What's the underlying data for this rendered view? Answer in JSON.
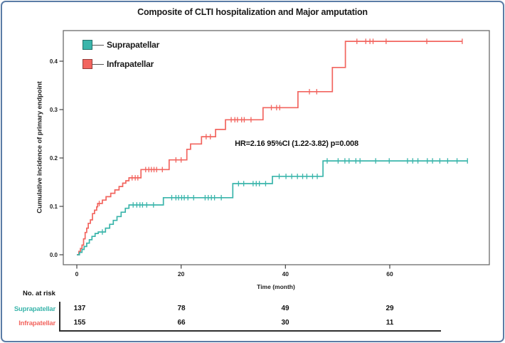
{
  "figure": {
    "border_color": "#5b7ca6"
  },
  "chart_data": {
    "type": "line",
    "subtype": "kaplan-meier-step",
    "title": "Composite of CLTI hospitalization and Major amputation",
    "xlabel": "Time (month)",
    "ylabel": "Cumulative incidence of primary endpoint",
    "annotation": "HR=2.16 95%CI (1.22-3.82) p=0.008",
    "xlim": [
      0,
      79
    ],
    "ylim": [
      0,
      0.46
    ],
    "xticks": [
      0,
      20,
      40,
      60
    ],
    "ytick_labels": [
      "0.0",
      "0.1",
      "0.2",
      "0.3",
      "0.4"
    ],
    "grid": false,
    "legend_position": "top-left",
    "series": [
      {
        "name": "Suprapatellar",
        "color": "#3ab5ab",
        "steps": [
          [
            0,
            0
          ],
          [
            0.5,
            0.005
          ],
          [
            1.0,
            0.011
          ],
          [
            1.4,
            0.017
          ],
          [
            1.9,
            0.024
          ],
          [
            2.4,
            0.031
          ],
          [
            2.9,
            0.038
          ],
          [
            3.5,
            0.044
          ],
          [
            4.1,
            0.047
          ],
          [
            5.5,
            0.055
          ],
          [
            6.3,
            0.063
          ],
          [
            7.0,
            0.071
          ],
          [
            7.7,
            0.079
          ],
          [
            8.5,
            0.088
          ],
          [
            9.3,
            0.096
          ],
          [
            10.0,
            0.103
          ],
          [
            16.6,
            0.118
          ],
          [
            29.9,
            0.147
          ],
          [
            37.5,
            0.162
          ],
          [
            47.2,
            0.194
          ]
        ],
        "end_month": 74.9,
        "censor_ticks": [
          [
            4.9,
            0.047
          ],
          [
            10.8,
            0.103
          ],
          [
            11.5,
            0.103
          ],
          [
            12.1,
            0.103
          ],
          [
            12.6,
            0.103
          ],
          [
            13.4,
            0.103
          ],
          [
            14.7,
            0.103
          ],
          [
            18.2,
            0.118
          ],
          [
            19.0,
            0.118
          ],
          [
            19.5,
            0.118
          ],
          [
            20.1,
            0.118
          ],
          [
            20.6,
            0.118
          ],
          [
            21.3,
            0.118
          ],
          [
            22.4,
            0.118
          ],
          [
            24.6,
            0.118
          ],
          [
            25.2,
            0.118
          ],
          [
            25.8,
            0.118
          ],
          [
            26.4,
            0.118
          ],
          [
            27.7,
            0.118
          ],
          [
            31.0,
            0.147
          ],
          [
            32.0,
            0.147
          ],
          [
            33.8,
            0.147
          ],
          [
            34.4,
            0.147
          ],
          [
            35.0,
            0.147
          ],
          [
            36.2,
            0.147
          ],
          [
            38.8,
            0.162
          ],
          [
            40.1,
            0.162
          ],
          [
            41.2,
            0.162
          ],
          [
            42.3,
            0.162
          ],
          [
            43.3,
            0.162
          ],
          [
            44.1,
            0.162
          ],
          [
            45.2,
            0.162
          ],
          [
            46.1,
            0.162
          ],
          [
            48.0,
            0.194
          ],
          [
            50.1,
            0.194
          ],
          [
            51.4,
            0.194
          ],
          [
            52.2,
            0.194
          ],
          [
            53.5,
            0.194
          ],
          [
            54.3,
            0.194
          ],
          [
            57.3,
            0.194
          ],
          [
            59.9,
            0.194
          ],
          [
            63.4,
            0.194
          ],
          [
            64.4,
            0.194
          ],
          [
            65.4,
            0.194
          ],
          [
            67.2,
            0.194
          ],
          [
            68.2,
            0.194
          ],
          [
            69.6,
            0.194
          ],
          [
            71.1,
            0.194
          ],
          [
            72.9,
            0.194
          ],
          [
            74.9,
            0.194
          ]
        ]
      },
      {
        "name": "Infrapatellar",
        "color": "#f2655f",
        "steps": [
          [
            0,
            0
          ],
          [
            0.4,
            0.007
          ],
          [
            0.7,
            0.013
          ],
          [
            1.0,
            0.02
          ],
          [
            1.3,
            0.033
          ],
          [
            1.6,
            0.046
          ],
          [
            1.9,
            0.055
          ],
          [
            2.2,
            0.065
          ],
          [
            2.6,
            0.072
          ],
          [
            3.0,
            0.085
          ],
          [
            3.4,
            0.092
          ],
          [
            3.8,
            0.099
          ],
          [
            4.0,
            0.106
          ],
          [
            4.9,
            0.113
          ],
          [
            5.6,
            0.12
          ],
          [
            6.5,
            0.127
          ],
          [
            7.3,
            0.134
          ],
          [
            8.1,
            0.141
          ],
          [
            8.8,
            0.148
          ],
          [
            9.4,
            0.153
          ],
          [
            10.0,
            0.159
          ],
          [
            12.3,
            0.176
          ],
          [
            17.7,
            0.196
          ],
          [
            21.1,
            0.218
          ],
          [
            21.8,
            0.229
          ],
          [
            23.9,
            0.244
          ],
          [
            26.6,
            0.259
          ],
          [
            28.5,
            0.279
          ],
          [
            35.7,
            0.304
          ],
          [
            42.4,
            0.337
          ],
          [
            49.0,
            0.387
          ],
          [
            51.5,
            0.441
          ]
        ],
        "end_month": 73.9,
        "censor_ticks": [
          [
            4.3,
            0.106
          ],
          [
            10.6,
            0.159
          ],
          [
            11.2,
            0.159
          ],
          [
            11.7,
            0.159
          ],
          [
            13.2,
            0.176
          ],
          [
            13.8,
            0.176
          ],
          [
            14.3,
            0.176
          ],
          [
            14.8,
            0.176
          ],
          [
            15.3,
            0.176
          ],
          [
            16.4,
            0.176
          ],
          [
            19.0,
            0.196
          ],
          [
            20.0,
            0.196
          ],
          [
            24.8,
            0.244
          ],
          [
            25.6,
            0.244
          ],
          [
            29.6,
            0.279
          ],
          [
            30.3,
            0.279
          ],
          [
            30.8,
            0.279
          ],
          [
            31.6,
            0.279
          ],
          [
            32.1,
            0.279
          ],
          [
            33.4,
            0.279
          ],
          [
            37.3,
            0.304
          ],
          [
            38.3,
            0.304
          ],
          [
            38.9,
            0.304
          ],
          [
            44.6,
            0.337
          ],
          [
            46.0,
            0.337
          ],
          [
            53.7,
            0.441
          ],
          [
            55.4,
            0.441
          ],
          [
            56.2,
            0.441
          ],
          [
            56.8,
            0.441
          ],
          [
            59.3,
            0.441
          ],
          [
            67.1,
            0.441
          ],
          [
            73.9,
            0.441
          ]
        ]
      }
    ]
  },
  "risk_table": {
    "header": "No. at risk",
    "time_points": [
      0,
      20,
      40,
      60
    ],
    "rows": [
      {
        "label": "Suprapatellar",
        "color": "#3ab5ab",
        "values": [
          "137",
          "78",
          "49",
          "29"
        ]
      },
      {
        "label": "Infrapatellar",
        "color": "#f2655f",
        "values": [
          "155",
          "66",
          "30",
          "11"
        ]
      }
    ]
  }
}
